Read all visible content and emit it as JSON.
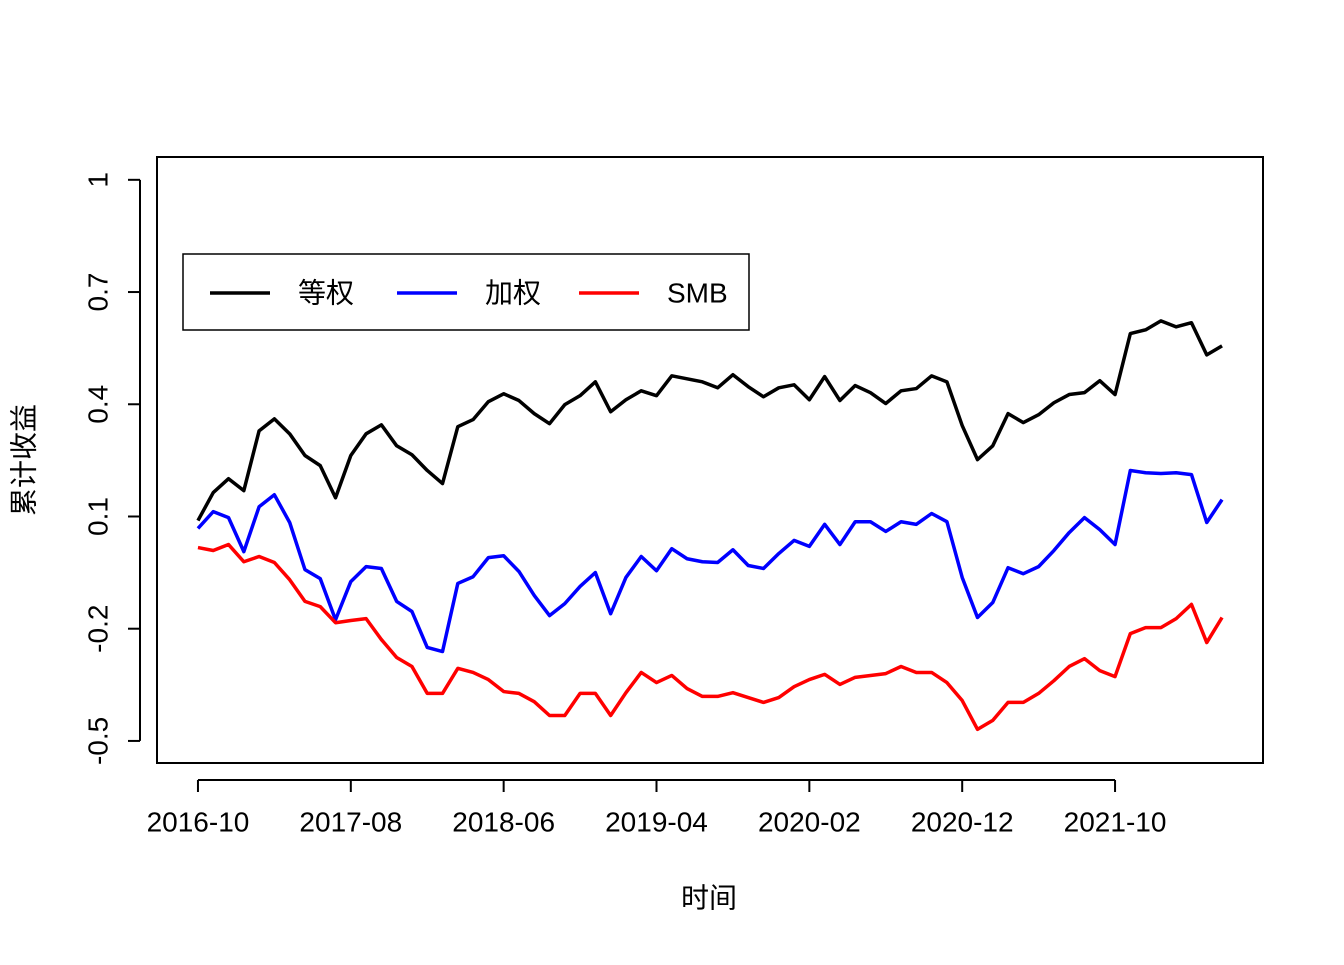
{
  "chart_data": {
    "type": "line",
    "xlabel": "时间",
    "ylabel": "累计收益",
    "x": [
      "2016-10",
      "2016-11",
      "2016-12",
      "2017-01",
      "2017-02",
      "2017-03",
      "2017-04",
      "2017-05",
      "2017-06",
      "2017-07",
      "2017-08",
      "2017-09",
      "2017-10",
      "2017-11",
      "2017-12",
      "2018-01",
      "2018-02",
      "2018-03",
      "2018-04",
      "2018-05",
      "2018-06",
      "2018-07",
      "2018-08",
      "2018-09",
      "2018-10",
      "2018-11",
      "2018-12",
      "2019-01",
      "2019-02",
      "2019-03",
      "2019-04",
      "2019-05",
      "2019-06",
      "2019-07",
      "2019-08",
      "2019-09",
      "2019-10",
      "2019-11",
      "2019-12",
      "2020-01",
      "2020-02",
      "2020-03",
      "2020-04",
      "2020-05",
      "2020-06",
      "2020-07",
      "2020-08",
      "2020-09",
      "2020-10",
      "2020-11",
      "2020-12",
      "2021-01",
      "2021-02",
      "2021-03",
      "2021-04",
      "2021-05",
      "2021-06",
      "2021-07",
      "2021-08",
      "2021-09",
      "2021-10",
      "2021-11",
      "2021-12",
      "2022-01",
      "2022-02",
      "2022-03",
      "2022-04",
      "2022-05"
    ],
    "series": [
      {
        "name": "等权",
        "color": "#000000",
        "values": [
          0.089,
          0.164,
          0.201,
          0.169,
          0.329,
          0.361,
          0.321,
          0.263,
          0.236,
          0.15,
          0.263,
          0.321,
          0.345,
          0.289,
          0.265,
          0.223,
          0.188,
          0.34,
          0.359,
          0.407,
          0.428,
          0.41,
          0.375,
          0.348,
          0.399,
          0.423,
          0.46,
          0.38,
          0.412,
          0.436,
          0.423,
          0.476,
          0.468,
          0.46,
          0.444,
          0.479,
          0.447,
          0.42,
          0.444,
          0.452,
          0.412,
          0.474,
          0.41,
          0.45,
          0.431,
          0.402,
          0.436,
          0.442,
          0.476,
          0.46,
          0.343,
          0.252,
          0.289,
          0.375,
          0.351,
          0.372,
          0.404,
          0.426,
          0.431,
          0.463,
          0.426,
          0.589,
          0.599,
          0.623,
          0.607,
          0.618,
          0.532,
          0.556
        ]
      },
      {
        "name": "加权",
        "color": "#0000ff",
        "values": [
          0.068,
          0.113,
          0.097,
          0.006,
          0.126,
          0.158,
          0.084,
          -0.042,
          -0.066,
          -0.176,
          -0.074,
          -0.034,
          -0.039,
          -0.127,
          -0.154,
          -0.25,
          -0.261,
          -0.079,
          -0.061,
          -0.01,
          -0.005,
          -0.047,
          -0.111,
          -0.165,
          -0.133,
          -0.087,
          -0.05,
          -0.16,
          -0.063,
          -0.007,
          -0.045,
          0.014,
          -0.013,
          -0.021,
          -0.023,
          0.011,
          -0.031,
          -0.039,
          0.001,
          0.036,
          0.02,
          0.079,
          0.025,
          0.086,
          0.086,
          0.06,
          0.086,
          0.079,
          0.108,
          0.086,
          -0.063,
          -0.17,
          -0.13,
          -0.037,
          -0.053,
          -0.034,
          0.009,
          0.057,
          0.097,
          0.065,
          0.025,
          0.223,
          0.217,
          0.215,
          0.217,
          0.212,
          0.084,
          0.145
        ]
      },
      {
        "name": "SMB",
        "color": "#ff0000",
        "values": [
          0.017,
          0.009,
          0.025,
          -0.021,
          -0.007,
          -0.023,
          -0.069,
          -0.127,
          -0.141,
          -0.184,
          -0.178,
          -0.173,
          -0.229,
          -0.277,
          -0.301,
          -0.373,
          -0.373,
          -0.306,
          -0.317,
          -0.336,
          -0.368,
          -0.373,
          -0.395,
          -0.432,
          -0.432,
          -0.373,
          -0.373,
          -0.432,
          -0.371,
          -0.317,
          -0.344,
          -0.325,
          -0.36,
          -0.381,
          -0.381,
          -0.371,
          -0.384,
          -0.397,
          -0.384,
          -0.355,
          -0.336,
          -0.322,
          -0.349,
          -0.33,
          -0.325,
          -0.32,
          -0.301,
          -0.317,
          -0.317,
          -0.344,
          -0.392,
          -0.469,
          -0.445,
          -0.397,
          -0.397,
          -0.373,
          -0.339,
          -0.301,
          -0.28,
          -0.312,
          -0.328,
          -0.213,
          -0.197,
          -0.197,
          -0.173,
          -0.135,
          -0.237,
          -0.17
        ]
      }
    ],
    "xticks": [
      "2016-10",
      "2017-08",
      "2018-06",
      "2019-04",
      "2020-02",
      "2020-12",
      "2021-10"
    ],
    "ylim": [
      -0.559,
      1.061
    ],
    "yticks": [
      -0.5,
      -0.2,
      0.1,
      0.4,
      0.7,
      1
    ],
    "legend": "top-left"
  }
}
